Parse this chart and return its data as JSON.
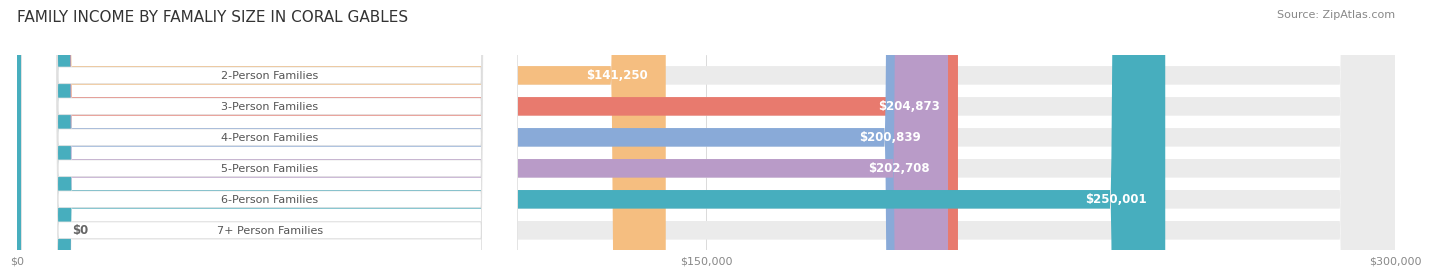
{
  "title": "FAMILY INCOME BY FAMALIY SIZE IN CORAL GABLES",
  "source": "Source: ZipAtlas.com",
  "categories": [
    "2-Person Families",
    "3-Person Families",
    "4-Person Families",
    "5-Person Families",
    "6-Person Families",
    "7+ Person Families"
  ],
  "values": [
    141250,
    204873,
    200839,
    202708,
    250001,
    0
  ],
  "labels": [
    "$141,250",
    "$204,873",
    "$200,839",
    "$202,708",
    "$250,001",
    "$0"
  ],
  "bar_colors": [
    "#F5BE80",
    "#E87A6E",
    "#89AAD8",
    "#B99BC8",
    "#47AEBE",
    "#C5C9E8"
  ],
  "bar_bg_color": "#EBEBEB",
  "xmax": 300000,
  "xticklabels": [
    "$0",
    "$150,000",
    "$300,000"
  ],
  "background_color": "#FFFFFF",
  "title_fontsize": 11,
  "bar_height": 0.6,
  "label_fontsize": 8.5,
  "category_fontsize": 8,
  "source_fontsize": 8
}
